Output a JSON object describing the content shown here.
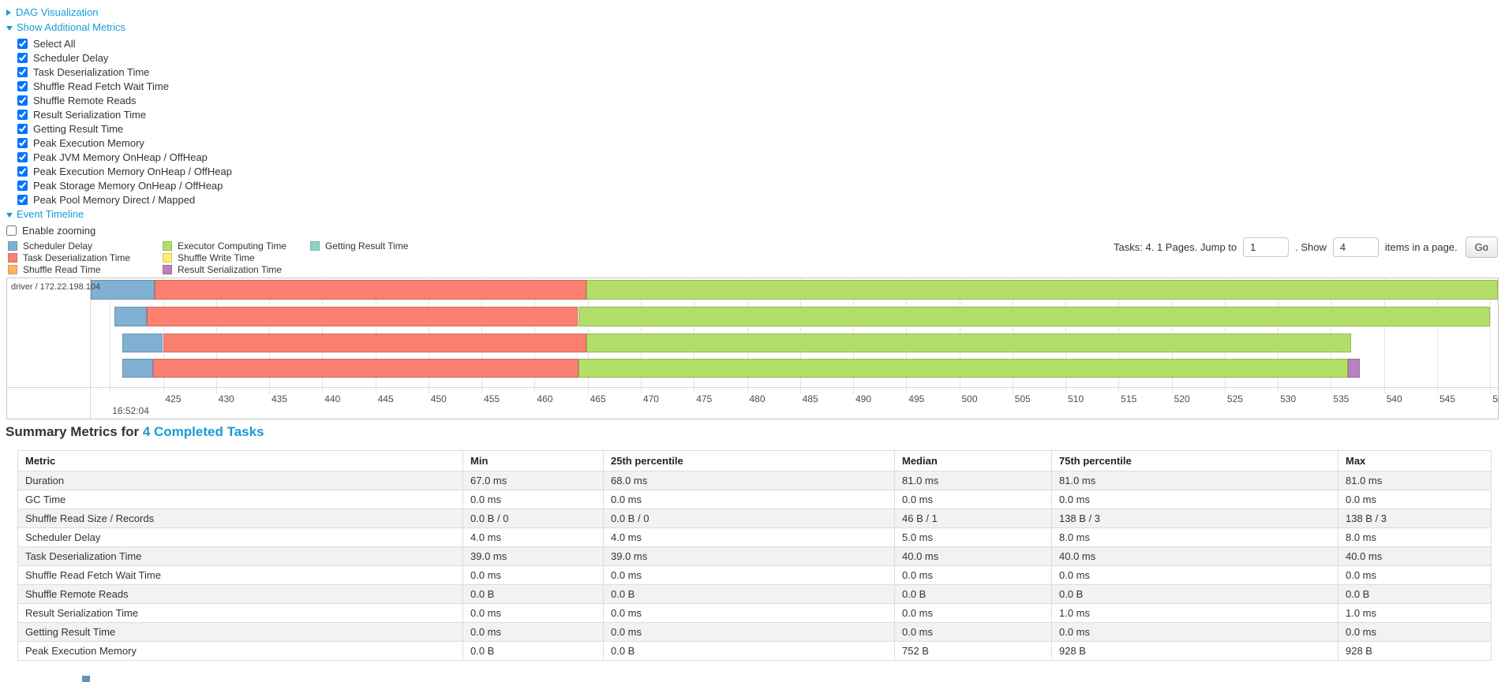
{
  "colors": {
    "link": "#179bd7",
    "scheduler_delay": "#80B1D3",
    "task_deserialization": "#FB8072",
    "shuffle_read": "#FDB462",
    "executor_computing": "#B3DE69",
    "shuffle_write": "#FFED6F",
    "result_serialization": "#BC80BD",
    "getting_result": "#8DD3C7"
  },
  "toggles": {
    "dag": "DAG Visualization",
    "metrics": "Show Additional Metrics",
    "timeline": "Event Timeline"
  },
  "metrics_options": [
    "Select All",
    "Scheduler Delay",
    "Task Deserialization Time",
    "Shuffle Read Fetch Wait Time",
    "Shuffle Remote Reads",
    "Result Serialization Time",
    "Getting Result Time",
    "Peak Execution Memory",
    "Peak JVM Memory OnHeap / OffHeap",
    "Peak Execution Memory OnHeap / OffHeap",
    "Peak Storage Memory OnHeap / OffHeap",
    "Peak Pool Memory Direct / Mapped"
  ],
  "enable_zooming_label": "Enable zooming",
  "legend_columns": [
    [
      {
        "label": "Scheduler Delay",
        "color": "#80B1D3"
      },
      {
        "label": "Task Deserialization Time",
        "color": "#FB8072"
      },
      {
        "label": "Shuffle Read Time",
        "color": "#FDB462"
      }
    ],
    [
      {
        "label": "Executor Computing Time",
        "color": "#B3DE69"
      },
      {
        "label": "Shuffle Write Time",
        "color": "#FFED6F"
      },
      {
        "label": "Result Serialization Time",
        "color": "#BC80BD"
      }
    ],
    [
      {
        "label": "Getting Result Time",
        "color": "#8DD3C7"
      }
    ]
  ],
  "pagination": {
    "tasks_text": "Tasks: 4. 1 Pages. Jump to",
    "jump_value": "1",
    "show_text": ". Show",
    "show_value": "4",
    "items_text": "items in a page.",
    "go_label": "Go"
  },
  "chart_data": {
    "type": "bar",
    "subtype": "task-event-timeline",
    "group_label": "driver / 172.22.198.104",
    "time_of_day": "16:52:04",
    "axis_unit": "ms within 16:52:04",
    "domain_ms": [
      418.2,
      550.8
    ],
    "tick_start": 420,
    "tick_end": 550,
    "tick_step": 5,
    "first_labeled_tick": 425,
    "tasks": [
      {
        "segments": [
          {
            "name": "scheduler_delay",
            "start": 418.2,
            "end": 424.2
          },
          {
            "name": "task_deserialization",
            "start": 424.2,
            "end": 464.9
          },
          {
            "name": "executor_computing",
            "start": 464.9,
            "end": 550.7
          }
        ]
      },
      {
        "segments": [
          {
            "name": "scheduler_delay",
            "start": 420.4,
            "end": 423.5
          },
          {
            "name": "task_deserialization",
            "start": 423.5,
            "end": 464.1
          },
          {
            "name": "executor_computing",
            "start": 464.1,
            "end": 550.0
          }
        ]
      },
      {
        "segments": [
          {
            "name": "scheduler_delay",
            "start": 421.2,
            "end": 425.0
          },
          {
            "name": "task_deserialization",
            "start": 425.0,
            "end": 464.9
          },
          {
            "name": "executor_computing",
            "start": 464.9,
            "end": 536.9
          }
        ]
      },
      {
        "segments": [
          {
            "name": "scheduler_delay",
            "start": 421.2,
            "end": 424.1
          },
          {
            "name": "task_deserialization",
            "start": 424.1,
            "end": 464.1
          },
          {
            "name": "executor_computing",
            "start": 464.1,
            "end": 536.6
          },
          {
            "name": "result_serialization",
            "start": 536.6,
            "end": 537.7
          }
        ]
      }
    ]
  },
  "summary": {
    "title_prefix": "Summary Metrics for ",
    "title_link": "4 Completed Tasks",
    "columns": [
      "Metric",
      "Min",
      "25th percentile",
      "Median",
      "75th percentile",
      "Max"
    ],
    "rows": [
      [
        "Duration",
        "67.0 ms",
        "68.0 ms",
        "81.0 ms",
        "81.0 ms",
        "81.0 ms"
      ],
      [
        "GC Time",
        "0.0 ms",
        "0.0 ms",
        "0.0 ms",
        "0.0 ms",
        "0.0 ms"
      ],
      [
        "Shuffle Read Size / Records",
        "0.0 B / 0",
        "0.0 B / 0",
        "46 B / 1",
        "138 B / 3",
        "138 B / 3"
      ],
      [
        "Scheduler Delay",
        "4.0 ms",
        "4.0 ms",
        "5.0 ms",
        "8.0 ms",
        "8.0 ms"
      ],
      [
        "Task Deserialization Time",
        "39.0 ms",
        "39.0 ms",
        "40.0 ms",
        "40.0 ms",
        "40.0 ms"
      ],
      [
        "Shuffle Read Fetch Wait Time",
        "0.0 ms",
        "0.0 ms",
        "0.0 ms",
        "0.0 ms",
        "0.0 ms"
      ],
      [
        "Shuffle Remote Reads",
        "0.0 B",
        "0.0 B",
        "0.0 B",
        "0.0 B",
        "0.0 B"
      ],
      [
        "Result Serialization Time",
        "0.0 ms",
        "0.0 ms",
        "0.0 ms",
        "1.0 ms",
        "1.0 ms"
      ],
      [
        "Getting Result Time",
        "0.0 ms",
        "0.0 ms",
        "0.0 ms",
        "0.0 ms",
        "0.0 ms"
      ],
      [
        "Peak Execution Memory",
        "0.0 B",
        "0.0 B",
        "752 B",
        "928 B",
        "928 B"
      ]
    ]
  }
}
